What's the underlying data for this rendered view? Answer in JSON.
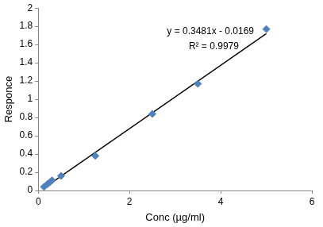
{
  "chart_data": {
    "type": "scatter",
    "x_label": "Conc (µg/ml)",
    "y_label": "Responce",
    "annotations": [
      "y = 0.3481x - 0.0169",
      "R² = 0.9979"
    ],
    "series": [
      {
        "type": "scatter",
        "color": "#4f81bd",
        "marker": "diamond",
        "x": [
          0.125,
          0.2,
          0.25,
          0.3,
          0.5,
          1.25,
          2.5,
          3.5,
          5
        ],
        "values": [
          0.04,
          0.07,
          0.09,
          0.11,
          0.16,
          0.38,
          0.84,
          1.17,
          1.77
        ]
      },
      {
        "type": "line",
        "color": "#000000",
        "line_style": "solid",
        "x": [
          0.125,
          5
        ],
        "values": [
          0.027,
          1.72
        ]
      }
    ],
    "xlim": [
      0,
      6
    ],
    "xticks": [
      0,
      2,
      4,
      6
    ],
    "ylim": [
      0,
      2
    ],
    "yticks": [
      0,
      0.2,
      0.4,
      0.6,
      0.8,
      1,
      1.2,
      1.4,
      1.6,
      1.8,
      2
    ],
    "grid": false
  }
}
